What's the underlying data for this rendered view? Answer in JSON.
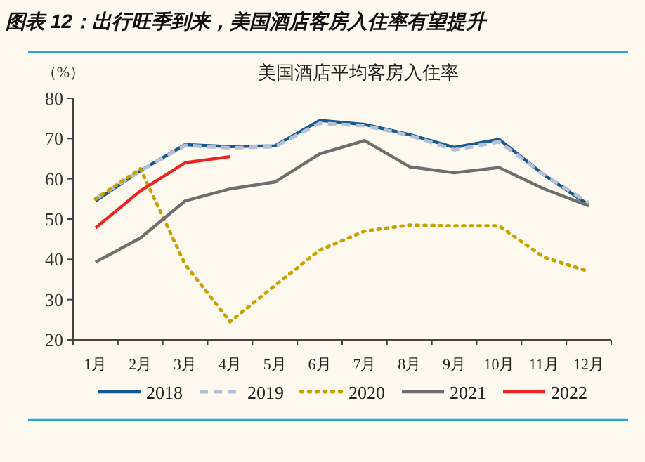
{
  "chart_data": {
    "type": "line",
    "title": "图表 12：出行旺季到来，美国酒店客房入住率有望提升",
    "subtitle": "美国酒店平均客房入住率",
    "ylabel": "（%）",
    "categories": [
      "1月",
      "2月",
      "3月",
      "4月",
      "5月",
      "6月",
      "7月",
      "8月",
      "9月",
      "10月",
      "11月",
      "12月"
    ],
    "series": [
      {
        "name": "2018",
        "color": "#17598f",
        "line_style": "solid",
        "values": [
          54.5,
          62,
          68.5,
          68,
          68.2,
          74.5,
          73.5,
          71,
          67.8,
          69.8,
          61,
          53.5
        ]
      },
      {
        "name": "2019",
        "color": "#b4c0d6",
        "line_style": "dashed",
        "values": [
          55,
          62,
          68.3,
          67.7,
          68,
          73.8,
          73.2,
          70.8,
          67.2,
          69.2,
          61,
          54
        ]
      },
      {
        "name": "2020",
        "color": "#c8a000",
        "line_style": "dotted",
        "values": [
          55,
          62.5,
          38.7,
          24.5,
          33.5,
          42.3,
          47,
          48.5,
          48.3,
          48.3,
          40.5,
          37
        ]
      },
      {
        "name": "2021",
        "color": "#6e6e6e",
        "line_style": "solid",
        "values": [
          39.3,
          45.3,
          54.5,
          57.5,
          59.2,
          66.2,
          69.5,
          63,
          61.5,
          62.8,
          57.5,
          53.3
        ]
      },
      {
        "name": "2022",
        "color": "#ee2222",
        "line_style": "solid",
        "values": [
          47.8,
          57,
          64,
          65.5,
          null,
          null,
          null,
          null,
          null,
          null,
          null,
          null
        ]
      }
    ],
    "ylim": [
      20,
      80
    ],
    "yticks": [
      20,
      30,
      40,
      50,
      60,
      70,
      80
    ],
    "legend": "bottom",
    "grid": false
  }
}
